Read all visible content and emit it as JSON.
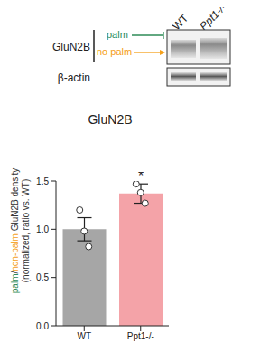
{
  "blot": {
    "lanes": [
      "WT",
      "Ppt1-/-"
    ],
    "rows": [
      "GluN2B",
      "β-actin"
    ],
    "bands": [
      {
        "label": "palm",
        "color": "#2e8b57"
      },
      {
        "label": "no palm",
        "color": "#f5a01a"
      }
    ]
  },
  "chart_data": {
    "type": "bar",
    "title": "GluN2B",
    "ylabel": [
      [
        {
          "text": "palm",
          "color": "#2e8b57"
        },
        {
          "text": "/",
          "color": "#333333"
        },
        {
          "text": "non-palm",
          "color": "#f5a01a"
        },
        {
          "text": " GluN2B density",
          "color": "#333333"
        }
      ],
      [
        {
          "text": "(normalized, ratio vs. WT)",
          "color": "#333333"
        }
      ]
    ],
    "categories": [
      "WT",
      "Ppt1-/-"
    ],
    "values": [
      1.0,
      1.37
    ],
    "errors": [
      0.12,
      0.1
    ],
    "points": [
      [
        1.2,
        0.98,
        0.82
      ],
      [
        1.47,
        1.38,
        1.27
      ]
    ],
    "colors": [
      "#a6a6a6",
      "#f4a3a8"
    ],
    "ylim": [
      0,
      1.5
    ],
    "yticks": [
      {
        "value": 0,
        "label": "0.0"
      },
      {
        "value": 0.5,
        "label": "0.5"
      },
      {
        "value": 1.0,
        "label": "1.0"
      },
      {
        "value": 1.5,
        "label": "1.5"
      }
    ],
    "annotations": [
      {
        "text": "*",
        "category": "Ppt1-/-"
      }
    ]
  }
}
